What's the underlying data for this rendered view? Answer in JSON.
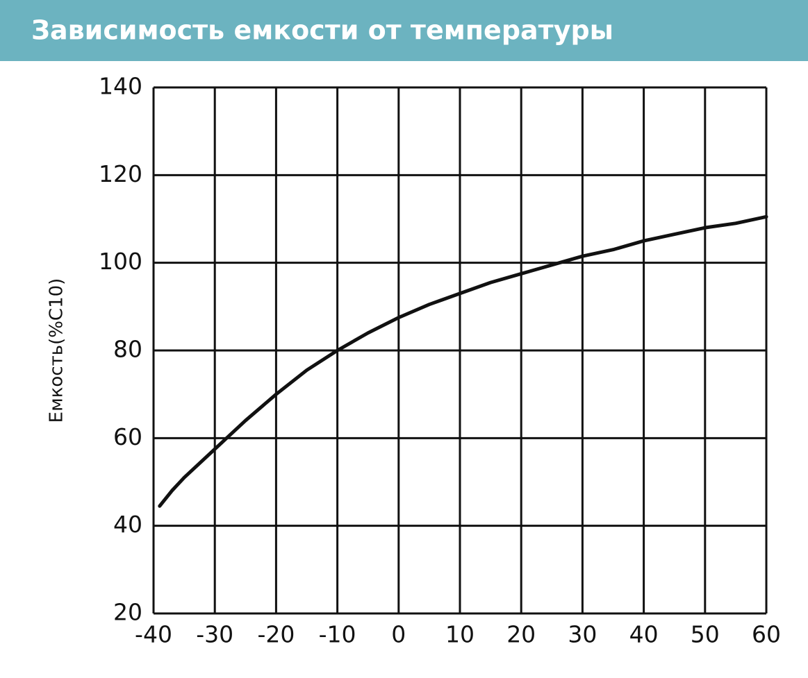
{
  "chart_data": {
    "type": "line",
    "title": "Зависимость емкости от температуры",
    "y_label": "Емкость(%C10)",
    "x": [
      -39,
      -37,
      -35,
      -30,
      -25,
      -20,
      -15,
      -10,
      -5,
      0,
      5,
      10,
      15,
      20,
      25,
      30,
      35,
      40,
      45,
      50,
      55,
      60
    ],
    "series": [
      {
        "name": "Емкость",
        "color": "#111111",
        "values": [
          44.5,
          48,
          51,
          57.5,
          64,
          70,
          75.5,
          80,
          84,
          87.5,
          90.5,
          93,
          95.5,
          97.5,
          99.5,
          101.5,
          103,
          105,
          106.5,
          108,
          109,
          110.5
        ]
      }
    ],
    "xlim": [
      -40,
      60
    ],
    "xticks": [
      -40,
      -30,
      -20,
      -10,
      0,
      10,
      20,
      30,
      40,
      50,
      60
    ],
    "ylim": [
      20,
      140
    ],
    "yticks": [
      20,
      40,
      60,
      80,
      100,
      120,
      140
    ],
    "grid": true
  }
}
